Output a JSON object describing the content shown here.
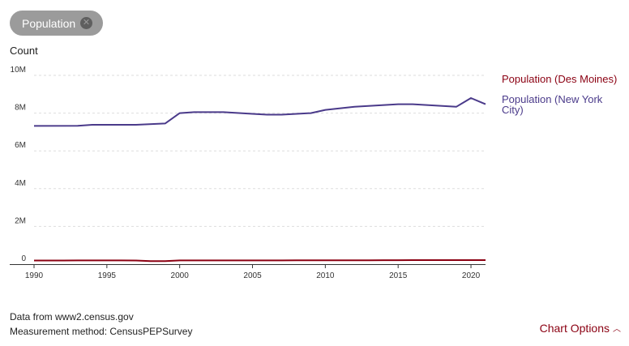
{
  "chip": {
    "label": "Population"
  },
  "footer": {
    "source": "Data from www2.census.gov",
    "method": "Measurement method: CensusPEPSurvey",
    "options_label": "Chart Options"
  },
  "colors": {
    "des_moines": "#8b0012",
    "new_york": "#4a3a8a",
    "chip_bg": "#9b9b9b",
    "grid": "#dddddd"
  },
  "chart_data": {
    "type": "line",
    "ylabel": "Count",
    "xlabel": "",
    "xlim": [
      1990,
      2021
    ],
    "ylim": [
      0,
      10000000
    ],
    "x_ticks": [
      "1990",
      "1995",
      "2000",
      "2005",
      "2010",
      "2015",
      "2020"
    ],
    "y_ticks": [
      "0",
      "2M",
      "4M",
      "6M",
      "8M",
      "10M"
    ],
    "grid": "horizontal dashed",
    "legend_position": "right",
    "series": [
      {
        "name": "Population (Des Moines)",
        "color": "#8b0012",
        "x": [
          1990,
          1991,
          1992,
          1993,
          1994,
          1995,
          1996,
          1997,
          1998,
          1999,
          2000,
          2001,
          2002,
          2003,
          2004,
          2005,
          2006,
          2007,
          2008,
          2009,
          2010,
          2011,
          2012,
          2013,
          2014,
          2015,
          2016,
          2017,
          2018,
          2019,
          2020,
          2021
        ],
        "values": [
          193000,
          194000,
          195000,
          196000,
          197000,
          197000,
          196000,
          193000,
          165000,
          160000,
          198000,
          199000,
          199000,
          198000,
          197000,
          197000,
          198000,
          199000,
          200000,
          201000,
          203000,
          205000,
          207000,
          208000,
          210000,
          212000,
          214000,
          215000,
          216000,
          214000,
          214000,
          213000
        ]
      },
      {
        "name": "Population (New York City)",
        "color": "#4a3a8a",
        "x": [
          1990,
          1993,
          1994,
          1997,
          1999,
          2000,
          2001,
          2003,
          2005,
          2006,
          2007,
          2009,
          2010,
          2012,
          2015,
          2016,
          2019,
          2020,
          2021
        ],
        "values": [
          7320000,
          7330000,
          7380000,
          7380000,
          7450000,
          8000000,
          8050000,
          8050000,
          7960000,
          7920000,
          7920000,
          8000000,
          8170000,
          8340000,
          8470000,
          8470000,
          8340000,
          8800000,
          8470000
        ]
      }
    ]
  }
}
